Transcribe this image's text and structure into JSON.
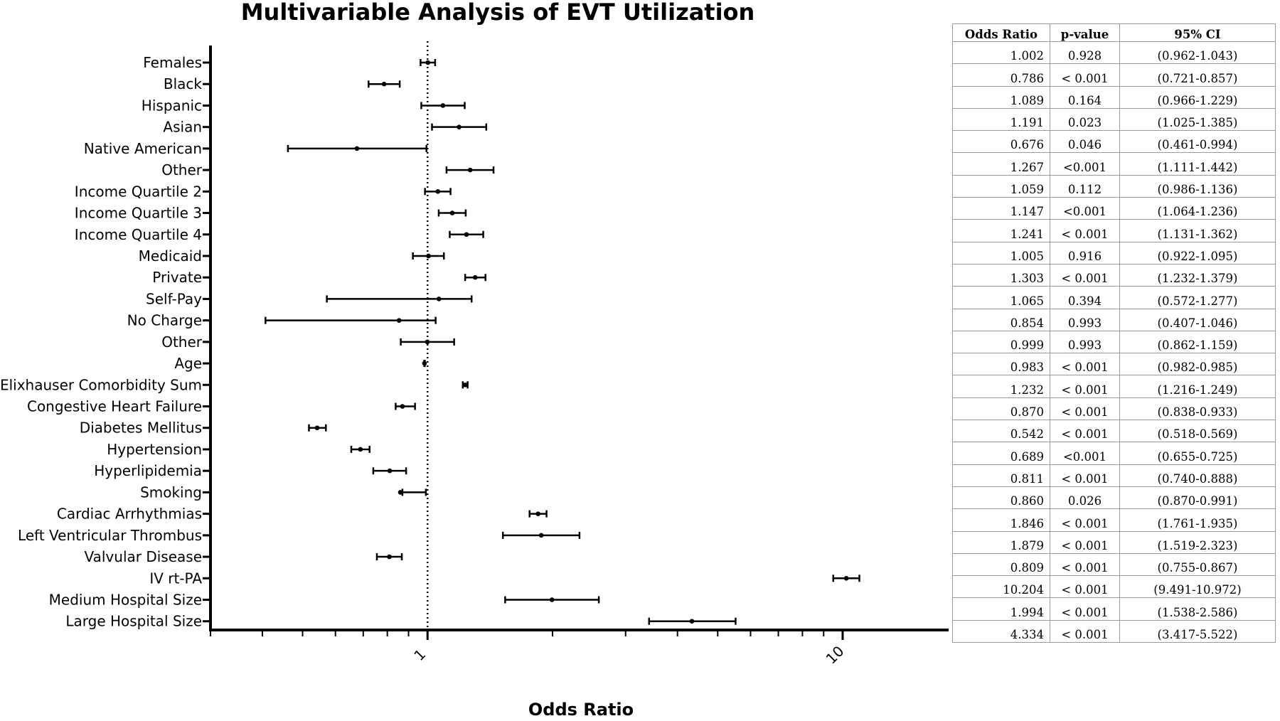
{
  "chart_data": {
    "type": "forest",
    "title": "Multivariable  Analysis of  EVT Utilization",
    "xlabel": "Odds  Ratio",
    "x_scale": "log",
    "xlim": [
      0.3,
      18
    ],
    "x_major_ticks": [
      1,
      10
    ],
    "x_tick_labels": [
      "1",
      "10"
    ],
    "x_minor_ticks": [
      0.3,
      0.4,
      0.5,
      0.6,
      0.7,
      0.8,
      0.9,
      2,
      3,
      4,
      5,
      6,
      7,
      8,
      9
    ],
    "reference_line": 1,
    "grid": false,
    "rows": [
      {
        "label": "Females",
        "or": 1.002,
        "lo": 0.962,
        "hi": 1.043
      },
      {
        "label": "Black",
        "or": 0.786,
        "lo": 0.721,
        "hi": 0.857
      },
      {
        "label": "Hispanic",
        "or": 1.089,
        "lo": 0.966,
        "hi": 1.229
      },
      {
        "label": "Asian",
        "or": 1.191,
        "lo": 1.025,
        "hi": 1.385
      },
      {
        "label": "Native American",
        "or": 0.676,
        "lo": 0.461,
        "hi": 0.994
      },
      {
        "label": "Other",
        "or": 1.267,
        "lo": 1.111,
        "hi": 1.442
      },
      {
        "label": "Income Quartile 2",
        "or": 1.059,
        "lo": 0.986,
        "hi": 1.136
      },
      {
        "label": "Income Quartile 3",
        "or": 1.147,
        "lo": 1.064,
        "hi": 1.236
      },
      {
        "label": "Income Quartile 4",
        "or": 1.241,
        "lo": 1.131,
        "hi": 1.362
      },
      {
        "label": "Medicaid",
        "or": 1.005,
        "lo": 0.922,
        "hi": 1.095
      },
      {
        "label": "Private",
        "or": 1.303,
        "lo": 1.232,
        "hi": 1.379
      },
      {
        "label": "Self-Pay",
        "or": 1.065,
        "lo": 0.572,
        "hi": 1.277
      },
      {
        "label": "No Charge",
        "or": 0.854,
        "lo": 0.407,
        "hi": 1.046
      },
      {
        "label": "Other",
        "or": 0.999,
        "lo": 0.862,
        "hi": 1.159
      },
      {
        "label": "Age",
        "or": 0.983,
        "lo": 0.982,
        "hi": 0.985
      },
      {
        "label": "Elixhauser Comorbidity Sum",
        "or": 1.232,
        "lo": 1.216,
        "hi": 1.249
      },
      {
        "label": "Congestive Heart Failure",
        "or": 0.87,
        "lo": 0.838,
        "hi": 0.933
      },
      {
        "label": "Diabetes Mellitus",
        "or": 0.542,
        "lo": 0.518,
        "hi": 0.569
      },
      {
        "label": "Hypertension",
        "or": 0.689,
        "lo": 0.655,
        "hi": 0.725
      },
      {
        "label": "Hyperlipidemia",
        "or": 0.811,
        "lo": 0.74,
        "hi": 0.888
      },
      {
        "label": "Smoking",
        "or": 0.86,
        "lo": 0.87,
        "hi": 0.991
      },
      {
        "label": "Cardiac Arrhythmias",
        "or": 1.846,
        "lo": 1.761,
        "hi": 1.935
      },
      {
        "label": "Left Ventricular Thrombus",
        "or": 1.879,
        "lo": 1.519,
        "hi": 2.323
      },
      {
        "label": "Valvular Disease",
        "or": 0.809,
        "lo": 0.755,
        "hi": 0.867
      },
      {
        "label": "IV rt-PA",
        "or": 10.204,
        "lo": 9.491,
        "hi": 10.972
      },
      {
        "label": "Medium Hospital Size",
        "or": 1.994,
        "lo": 1.538,
        "hi": 2.586
      },
      {
        "label": "Large Hospital Size",
        "or": 4.334,
        "lo": 3.417,
        "hi": 5.522
      }
    ]
  },
  "table": {
    "headers": [
      "Odds Ratio",
      "p-value",
      "95% CI"
    ],
    "rows": [
      [
        "1.002",
        "0.928",
        "(0.962-1.043)"
      ],
      [
        "0.786",
        "< 0.001",
        "(0.721-0.857)"
      ],
      [
        "1.089",
        "0.164",
        "(0.966-1.229)"
      ],
      [
        "1.191",
        "0.023",
        "(1.025-1.385)"
      ],
      [
        "0.676",
        "0.046",
        "(0.461-0.994)"
      ],
      [
        "1.267",
        "<0.001",
        "(1.111-1.442)"
      ],
      [
        "1.059",
        "0.112",
        "(0.986-1.136)"
      ],
      [
        "1.147",
        "<0.001",
        "(1.064-1.236)"
      ],
      [
        "1.241",
        "< 0.001",
        "(1.131-1.362)"
      ],
      [
        "1.005",
        "0.916",
        "(0.922-1.095)"
      ],
      [
        "1.303",
        "< 0.001",
        "(1.232-1.379)"
      ],
      [
        "1.065",
        "0.394",
        "(0.572-1.277)"
      ],
      [
        "0.854",
        "0.993",
        "(0.407-1.046)"
      ],
      [
        "0.999",
        "0.993",
        "(0.862-1.159)"
      ],
      [
        "0.983",
        "< 0.001",
        "(0.982-0.985)"
      ],
      [
        "1.232",
        "< 0.001",
        "(1.216-1.249)"
      ],
      [
        "0.870",
        "< 0.001",
        "(0.838-0.933)"
      ],
      [
        "0.542",
        "< 0.001",
        "(0.518-0.569)"
      ],
      [
        "0.689",
        "<0.001",
        "(0.655-0.725)"
      ],
      [
        "0.811",
        "< 0.001",
        "(0.740-0.888)"
      ],
      [
        "0.860",
        "0.026",
        "(0.870-0.991)"
      ],
      [
        "1.846",
        "< 0.001",
        "(1.761-1.935)"
      ],
      [
        "1.879",
        "< 0.001",
        "(1.519-2.323)"
      ],
      [
        "0.809",
        "< 0.001",
        "(0.755-0.867)"
      ],
      [
        "10.204",
        "< 0.001",
        "(9.491-10.972)"
      ],
      [
        "1.994",
        "< 0.001",
        "(1.538-2.586)"
      ],
      [
        "4.334",
        "< 0.001",
        "(3.417-5.522)"
      ]
    ]
  }
}
